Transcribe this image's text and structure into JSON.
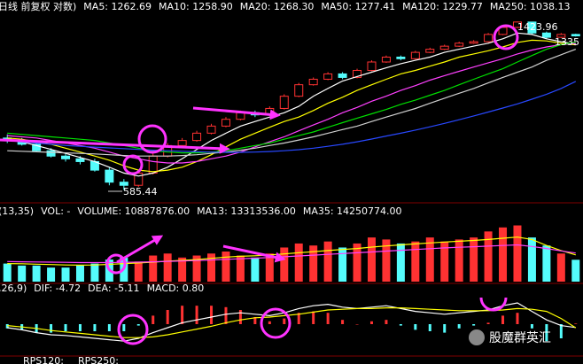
{
  "chart_data": [
    {
      "type": "candlestick",
      "title": "日线 前复权 对数)",
      "log": true,
      "ylim": [
        560,
        1480
      ],
      "up_color": "#ff3232",
      "down_color": "#54fcfc",
      "open": [
        770,
        760,
        745,
        720,
        700,
        690,
        680,
        650,
        610,
        600,
        640,
        700,
        740,
        760,
        790,
        820,
        850,
        880,
        870,
        900,
        960,
        1020,
        1050,
        1080,
        1060,
        1100,
        1150,
        1180,
        1170,
        1210,
        1230,
        1250,
        1270,
        1280,
        1330,
        1380,
        1420,
        1340,
        1310,
        1330
      ],
      "high": [
        785,
        770,
        755,
        730,
        710,
        700,
        690,
        660,
        620,
        650,
        710,
        750,
        770,
        800,
        830,
        860,
        890,
        890,
        910,
        970,
        1030,
        1060,
        1090,
        1090,
        1110,
        1160,
        1190,
        1190,
        1220,
        1240,
        1260,
        1280,
        1290,
        1340,
        1390,
        1423.96,
        1420,
        1350,
        1340,
        1335
      ],
      "low": [
        750,
        740,
        715,
        695,
        680,
        670,
        645,
        600,
        585.44,
        595,
        635,
        695,
        735,
        755,
        785,
        815,
        845,
        860,
        865,
        895,
        955,
        1015,
        1045,
        1050,
        1055,
        1095,
        1145,
        1160,
        1165,
        1205,
        1225,
        1245,
        1265,
        1275,
        1325,
        1375,
        1330,
        1300,
        1305,
        1315
      ],
      "close": [
        760,
        745,
        720,
        700,
        690,
        680,
        650,
        610,
        600,
        640,
        700,
        740,
        760,
        790,
        820,
        850,
        880,
        870,
        900,
        960,
        1020,
        1050,
        1080,
        1060,
        1100,
        1150,
        1180,
        1170,
        1210,
        1230,
        1250,
        1270,
        1280,
        1330,
        1380,
        1420,
        1340,
        1310,
        1330,
        1320
      ],
      "series": [
        {
          "label": "MA5: 1262.69",
          "color": "#ffffff",
          "values": [
            765,
            755,
            740,
            725,
            710,
            695,
            680,
            660,
            640,
            630,
            640,
            660,
            690,
            725,
            760,
            790,
            820,
            840,
            860,
            880,
            910,
            960,
            1000,
            1040,
            1065,
            1090,
            1115,
            1140,
            1160,
            1180,
            1210,
            1230,
            1250,
            1270,
            1300,
            1340,
            1330,
            1300,
            1280,
            1262.69
          ]
        },
        {
          "label": "MA10: 1258.90",
          "color": "#ffff00",
          "values": [
            770,
            765,
            755,
            745,
            730,
            715,
            700,
            685,
            665,
            650,
            645,
            650,
            660,
            680,
            705,
            735,
            765,
            790,
            815,
            840,
            860,
            890,
            925,
            955,
            990,
            1020,
            1050,
            1080,
            1100,
            1125,
            1150,
            1180,
            1200,
            1220,
            1245,
            1275,
            1290,
            1285,
            1270,
            1258.9
          ]
        },
        {
          "label": "MA20: 1268.30",
          "color": "#ff40ff",
          "values": [
            780,
            775,
            770,
            760,
            750,
            740,
            730,
            715,
            700,
            690,
            680,
            675,
            675,
            680,
            690,
            700,
            715,
            735,
            755,
            775,
            800,
            825,
            850,
            880,
            905,
            935,
            960,
            990,
            1015,
            1045,
            1070,
            1095,
            1120,
            1145,
            1170,
            1200,
            1225,
            1245,
            1260,
            1268.3
          ]
        },
        {
          "label": "MA50: 1277.41",
          "color": "#00e000",
          "values": [
            790,
            785,
            780,
            775,
            770,
            765,
            760,
            750,
            740,
            730,
            720,
            715,
            712,
            712,
            715,
            720,
            730,
            740,
            750,
            765,
            780,
            795,
            815,
            835,
            855,
            875,
            895,
            920,
            940,
            965,
            990,
            1020,
            1050,
            1080,
            1110,
            1150,
            1190,
            1230,
            1260,
            1277.41
          ]
        },
        {
          "label": "MA120: 1229.77",
          "color": "#d0d0d0",
          "values": [
            720,
            718,
            716,
            714,
            712,
            710,
            708,
            705,
            702,
            700,
            700,
            700,
            702,
            705,
            710,
            715,
            722,
            730,
            740,
            750,
            762,
            775,
            790,
            805,
            820,
            840,
            860,
            880,
            900,
            925,
            950,
            975,
            1000,
            1030,
            1060,
            1090,
            1120,
            1160,
            1195,
            1229.77
          ]
        },
        {
          "label": "MA250: 1038.13",
          "color": "#2848ff",
          "values": [
            760,
            755,
            750,
            745,
            740,
            737,
            734,
            731,
            728,
            725,
            722,
            720,
            718,
            716,
            715,
            714,
            714,
            715,
            717,
            720,
            724,
            730,
            737,
            745,
            755,
            766,
            778,
            790,
            803,
            817,
            832,
            848,
            865,
            883,
            902,
            922,
            945,
            970,
            1000,
            1038.13
          ]
        }
      ]
    },
    {
      "type": "bar",
      "header": [
        "(13,35)",
        "VOL: -"
      ],
      "ylim": [
        0,
        30000000
      ],
      "up_color": "#ff3232",
      "down_color": "#54fcfc",
      "series": [
        {
          "label": "VOLUME: 10887876.00",
          "type": "bar",
          "color": "#ffffff",
          "values": [
            9000000,
            8000000,
            8000000,
            7000000,
            7000000,
            8000000,
            9000000,
            11000000,
            12000000,
            10000000,
            13000000,
            14000000,
            12000000,
            13000000,
            14000000,
            15000000,
            13000000,
            12000000,
            14000000,
            17000000,
            19000000,
            18000000,
            20000000,
            17000000,
            19000000,
            22000000,
            21000000,
            19000000,
            20000000,
            22000000,
            20000000,
            21000000,
            22000000,
            25000000,
            27000000,
            28000000,
            22000000,
            18000000,
            14000000,
            10887876
          ]
        },
        {
          "label": "MA13: 13313536.00",
          "type": "line",
          "color": "#ffff00",
          "values": [
            9000000,
            8900000,
            8700000,
            8500000,
            8300000,
            8200000,
            8300000,
            8600000,
            9000000,
            9300000,
            9700000,
            10200000,
            10600000,
            11000000,
            11600000,
            12200000,
            12600000,
            12900000,
            13300000,
            13800000,
            14400000,
            14900000,
            15500000,
            16000000,
            16500000,
            17200000,
            17800000,
            18300000,
            18800000,
            19300000,
            19700000,
            20100000,
            20500000,
            21000000,
            21600000,
            22200000,
            21000000,
            18000000,
            15500000,
            13313536
          ]
        },
        {
          "label": "MA35: 14250774.00",
          "type": "line",
          "color": "#ff40ff",
          "values": [
            10000000,
            9900000,
            9800000,
            9700000,
            9600000,
            9500000,
            9500000,
            9500000,
            9600000,
            9700000,
            9900000,
            10100000,
            10300000,
            10500000,
            10800000,
            11100000,
            11400000,
            11700000,
            12000000,
            12400000,
            12800000,
            13200000,
            13600000,
            14000000,
            14400000,
            14800000,
            15200000,
            15600000,
            16000000,
            16400000,
            16800000,
            17100000,
            17400000,
            17700000,
            18000000,
            18300000,
            17500000,
            16500000,
            15300000,
            14250774
          ]
        }
      ]
    },
    {
      "type": "bar",
      "header": [
        ",26,9)"
      ],
      "ylim": [
        -40,
        40
      ],
      "up_color": "#ff3232",
      "down_color": "#54fcfc",
      "series": [
        {
          "label": "DIF: -4.72",
          "type": "line",
          "color": "#ffffff",
          "values": [
            -5,
            -8,
            -12,
            -15,
            -16,
            -18,
            -20,
            -22,
            -24,
            -20,
            -12,
            -5,
            2,
            6,
            10,
            14,
            16,
            14,
            12,
            16,
            22,
            26,
            28,
            24,
            22,
            24,
            26,
            22,
            18,
            16,
            14,
            16,
            18,
            20,
            26,
            30,
            18,
            6,
            -2,
            -4.72
          ]
        },
        {
          "label": "DEA: -5.11",
          "type": "line",
          "color": "#ffff00",
          "values": [
            -2,
            -4,
            -6,
            -9,
            -11,
            -13,
            -15,
            -17,
            -19,
            -19,
            -18,
            -15,
            -11,
            -7,
            -3,
            2,
            6,
            9,
            10,
            12,
            14,
            17,
            20,
            21,
            22,
            22,
            23,
            23,
            22,
            21,
            20,
            19,
            19,
            19,
            20,
            22,
            21,
            18,
            8,
            -5.11
          ]
        },
        {
          "label": "MACD: 0.80",
          "type": "bar",
          "color": "#ff40ff",
          "values": [
            -6,
            -8,
            -12,
            -12,
            -10,
            -10,
            -10,
            -10,
            -10,
            -2,
            12,
            20,
            26,
            26,
            26,
            24,
            20,
            10,
            4,
            8,
            16,
            18,
            16,
            6,
            0,
            4,
            6,
            -2,
            -8,
            -10,
            -12,
            -6,
            -2,
            2,
            12,
            16,
            -6,
            -24,
            -20,
            0.8
          ]
        }
      ]
    }
  ],
  "footer": [
    "RPS120:",
    "RPS250:"
  ],
  "watermark": "股魔群英汇"
}
